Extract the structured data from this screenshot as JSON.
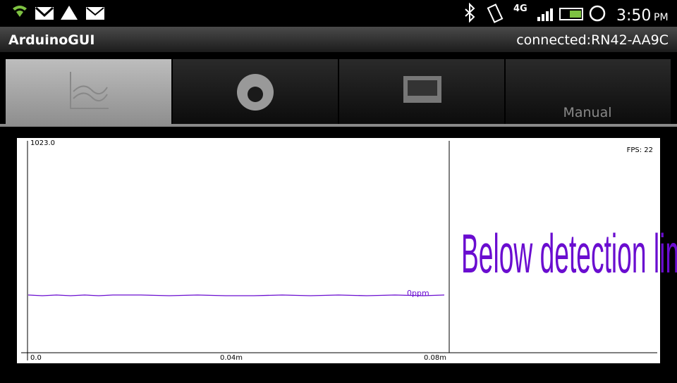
{
  "status_bar": {
    "time": "3:50",
    "ampm": "PM"
  },
  "app_bar": {
    "title": "ArduinoGUI",
    "connection": "connected:RN42-AA9C"
  },
  "tabs": {
    "manual": "Manual"
  },
  "plot": {
    "y_max_label": "1023.0",
    "fps": "FPS: 22",
    "message": "Below detection limit",
    "line_label": "0ppm",
    "x_labels": [
      "0.0",
      "0.04m",
      "0.08m"
    ]
  }
}
